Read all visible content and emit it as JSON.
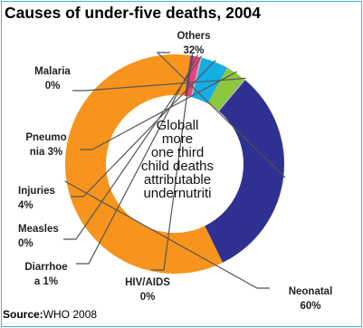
{
  "chart_data": {
    "type": "pie",
    "title": "Causes of under-five deaths, 2004",
    "center_text": [
      "Globall",
      "more",
      "one third",
      "child deaths",
      "attributable",
      "undernutriti"
    ],
    "source_label": "Source:",
    "source_value": "WHO 2008",
    "slices": [
      {
        "label_lines": [
          "Neonatal",
          "60%"
        ],
        "value": 60,
        "color": "#f7941d"
      },
      {
        "label_lines": [
          "HIV/AIDS",
          "0%"
        ],
        "value": 0.5,
        "color": "#9b2d6f"
      },
      {
        "label_lines": [
          "Diarrhoe",
          "a 1%"
        ],
        "value": 1,
        "color": "#e8457c"
      },
      {
        "label_lines": [
          "Measles",
          "0%"
        ],
        "value": 0.2,
        "color": "#c0c0c0"
      },
      {
        "label_lines": [
          "Injuries",
          "4%"
        ],
        "value": 4,
        "color": "#16aee6"
      },
      {
        "label_lines": [
          "Pneumo",
          "nia 3%"
        ],
        "value": 3,
        "color": "#8dc63f"
      },
      {
        "label_lines": [
          "Malaria",
          "0%"
        ],
        "value": 0.2,
        "color": "#b0b0b0"
      },
      {
        "label_lines": [
          "Others",
          "32%"
        ],
        "value": 31.9,
        "color": "#2e3192"
      }
    ]
  }
}
